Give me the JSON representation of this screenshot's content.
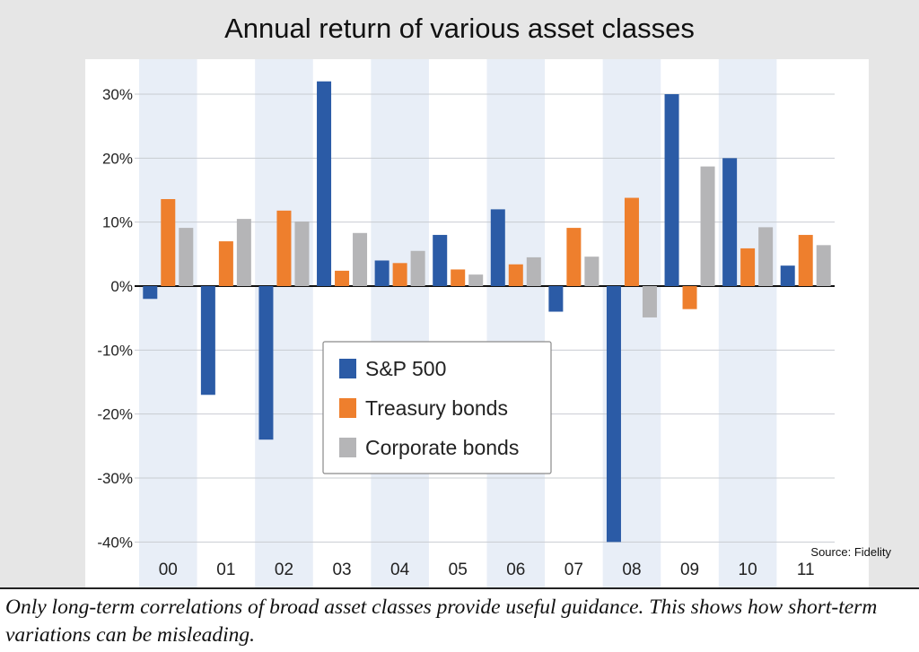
{
  "title": "Annual return of various asset classes",
  "source": "Source: Fidelity",
  "caption": "Only long-term correlations of broad asset classes provide useful guidance. This shows how short-term variations can be misleading.",
  "colors": {
    "sp500": "#2b5ba6",
    "treasury": "#ee7f2d",
    "corporate": "#b5b5b7",
    "band": "#e8eef7",
    "figure_bg": "#e6e6e6"
  },
  "chart_data": {
    "type": "bar",
    "categories": [
      "00",
      "01",
      "02",
      "03",
      "04",
      "05",
      "06",
      "07",
      "08",
      "09",
      "10",
      "11"
    ],
    "series": [
      {
        "name": "S&P 500",
        "color": "#2b5ba6",
        "values": [
          -2,
          -17,
          -24,
          32,
          4,
          8,
          12,
          -4,
          -40,
          30,
          20,
          3.2
        ]
      },
      {
        "name": "Treasury bonds",
        "color": "#ee7f2d",
        "values": [
          13.6,
          7,
          11.8,
          2.4,
          3.6,
          2.6,
          3.4,
          9.1,
          13.8,
          -3.6,
          5.9,
          8
        ]
      },
      {
        "name": "Corporate bonds",
        "color": "#b5b5b7",
        "values": [
          9.1,
          10.5,
          10.1,
          8.3,
          5.5,
          1.8,
          4.5,
          4.6,
          -4.9,
          18.7,
          9.2,
          6.4
        ]
      }
    ],
    "yticks": [
      "30%",
      "20%",
      "10%",
      "0%",
      "-10%",
      "-20%",
      "-30%",
      "-40%"
    ],
    "ylim": [
      -40,
      30
    ],
    "grid": true,
    "legend": "center",
    "title": "Annual return of various asset classes",
    "xlabel": "",
    "ylabel": ""
  }
}
